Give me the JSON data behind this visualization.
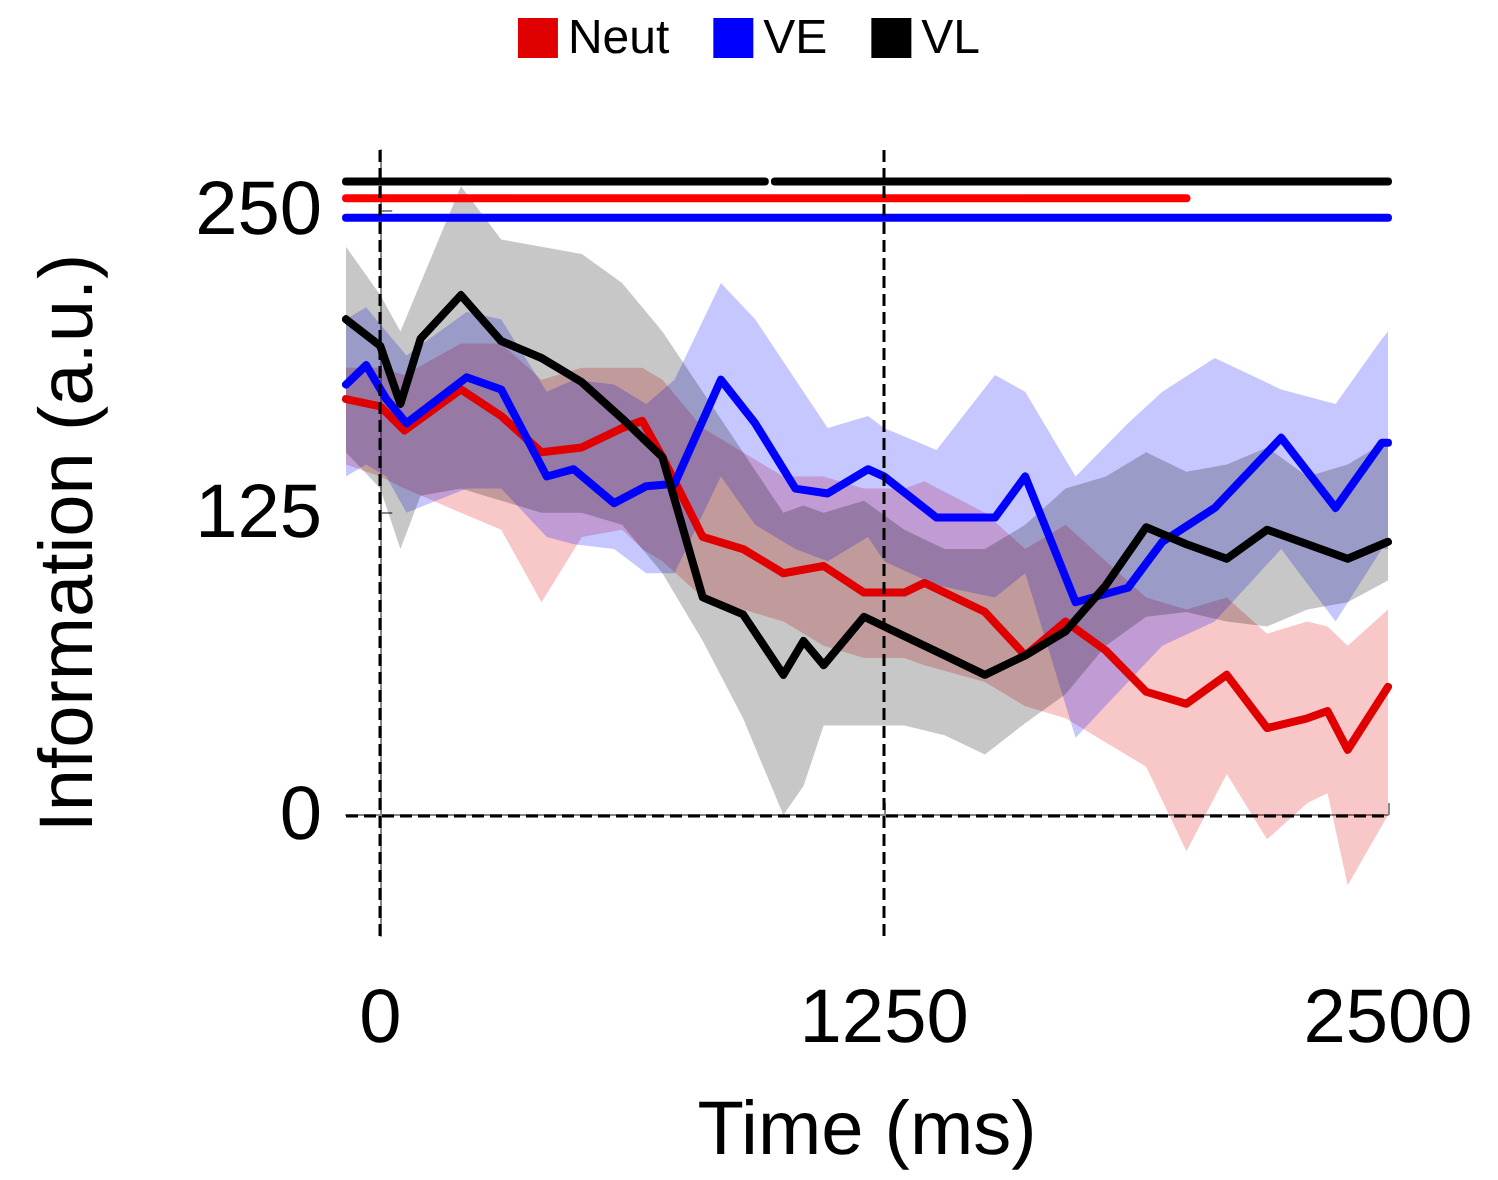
{
  "chart_data": {
    "type": "line",
    "xlabel": "Time (ms)",
    "ylabel": "Information (a.u.)",
    "xlim": [
      -85,
      2500
    ],
    "xticks": [
      0,
      1250,
      2500
    ],
    "ylim": [
      -50,
      275
    ],
    "yticks": [
      0,
      125,
      250
    ],
    "legend": "top",
    "marker": "none",
    "ref_lines": [
      {
        "axis": "x",
        "value": 0,
        "color": "#000000",
        "line_style": "dashed"
      },
      {
        "axis": "x",
        "value": 1250,
        "color": "#000000",
        "line_style": "dashed"
      },
      {
        "axis": "y",
        "value": 0,
        "color": "#000000",
        "line_style": "dashed"
      }
    ],
    "series": [
      {
        "name": "Neut",
        "color": "#e00000",
        "x": [
          -85,
          0,
          60,
          200,
          300,
          400,
          500,
          600,
          650,
          700,
          800,
          900,
          1000,
          1100,
          1200,
          1300,
          1350,
          1500,
          1600,
          1700,
          1800,
          1900,
          2000,
          2100,
          2200,
          2300,
          2350,
          2400,
          2500
        ],
        "values": [
          172,
          169,
          159,
          176,
          165,
          150,
          152,
          160,
          163,
          148,
          115,
          110,
          100,
          103,
          92,
          92,
          96,
          84,
          66,
          80,
          68,
          51,
          46,
          58,
          36,
          40,
          43,
          27,
          53
        ],
        "lower": [
          145,
          140,
          135,
          125,
          118,
          88,
          115,
          118,
          110,
          105,
          90,
          85,
          80,
          70,
          65,
          65,
          62,
          55,
          45,
          40,
          30,
          20,
          -15,
          17,
          -10,
          5,
          9,
          -29,
          0
        ],
        "upper": [
          185,
          185,
          182,
          195,
          195,
          180,
          185,
          185,
          185,
          180,
          160,
          150,
          140,
          140,
          135,
          135,
          138,
          125,
          110,
          120,
          105,
          90,
          85,
          90,
          75,
          80,
          78,
          70,
          85
        ]
      },
      {
        "name": "VE",
        "color": "#0000ff",
        "x": [
          -85,
          -35,
          15,
          65,
          214,
          300,
          413,
          480,
          580,
          660,
          730,
          845,
          930,
          1030,
          1110,
          1210,
          1250,
          1380,
          1525,
          1600,
          1725,
          1855,
          1940,
          2070,
          2235,
          2370,
          2485,
          2500
        ],
        "values": [
          178,
          186,
          172,
          162,
          181,
          176,
          140,
          143,
          129,
          136,
          137,
          180,
          162,
          135,
          133,
          143,
          140,
          123,
          123,
          140,
          88,
          94,
          113,
          127,
          156,
          127,
          154,
          154
        ],
        "lower": [
          140,
          145,
          140,
          125,
          135,
          135,
          115,
          112,
          110,
          100,
          100,
          140,
          120,
          110,
          105,
          115,
          105,
          95,
          90,
          100,
          32,
          55,
          70,
          80,
          110,
          80,
          110,
          110
        ],
        "upper": [
          205,
          210,
          200,
          190,
          208,
          205,
          175,
          180,
          178,
          170,
          180,
          220,
          205,
          180,
          160,
          165,
          160,
          151,
          182,
          175,
          140,
          162,
          175,
          189,
          176,
          170,
          197,
          200
        ]
      },
      {
        "name": "VL",
        "color": "#000000",
        "x": [
          -85,
          0,
          50,
          100,
          200,
          300,
          400,
          500,
          600,
          700,
          800,
          900,
          1000,
          1050,
          1100,
          1200,
          1300,
          1400,
          1500,
          1600,
          1700,
          1800,
          1900,
          2000,
          2100,
          2200,
          2300,
          2400,
          2500
        ],
        "values": [
          205,
          194,
          170,
          197,
          215,
          196,
          189,
          179,
          164,
          148,
          90,
          83,
          58,
          72,
          62,
          82,
          74,
          66,
          58,
          66,
          76,
          95,
          119,
          112,
          106,
          118,
          112,
          106,
          113
        ],
        "lower": [
          150,
          135,
          110,
          132,
          135,
          130,
          125,
          125,
          120,
          100,
          72,
          40,
          0,
          12,
          37,
          37,
          37,
          33,
          25,
          38,
          50,
          70,
          82,
          84,
          80,
          78,
          85,
          88,
          97
        ],
        "upper": [
          235,
          215,
          200,
          220,
          260,
          238,
          235,
          232,
          220,
          200,
          175,
          150,
          125,
          128,
          125,
          130,
          118,
          110,
          110,
          120,
          135,
          140,
          150,
          142,
          145,
          152,
          140,
          145,
          155
        ]
      },
      {
        "color": "#000000",
        "x": [
          -85,
          954,
          966,
          979,
          2500
        ],
        "values": [
          262,
          262,
          null,
          262,
          262
        ]
      },
      {
        "color": "#ff0000",
        "x": [
          -85,
          2000
        ],
        "values": [
          255,
          255
        ]
      },
      {
        "color": "#0000ff",
        "x": [
          -85,
          2500
        ],
        "values": [
          247,
          247
        ]
      }
    ]
  }
}
